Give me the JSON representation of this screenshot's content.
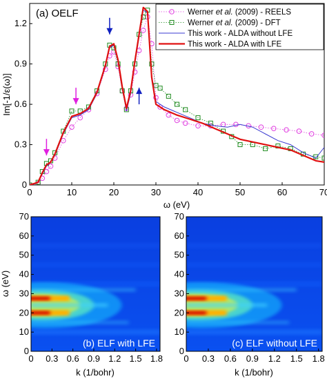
{
  "chart_data": [
    {
      "type": "line",
      "title": "(a) OELF",
      "xlabel": "ω (eV)",
      "ylabel": "Im[-1/ε(ω)]",
      "xlim": [
        0,
        70
      ],
      "ylim": [
        0,
        1.35
      ],
      "xticks": [
        "0",
        "10",
        "20",
        "30",
        "40",
        "50",
        "60",
        "70"
      ],
      "yticks": [
        "0",
        "0.3",
        "0.6",
        "0.9",
        "1.2"
      ],
      "legend_position": "top-right",
      "series": [
        {
          "name_parts": [
            "Werner ",
            "et al.",
            " (2009) - REELS"
          ],
          "color": "#e040e0",
          "style": "circle-markers",
          "points": [
            [
              0,
              0
            ],
            [
              2,
              0.01
            ],
            [
              3,
              0.05
            ],
            [
              4,
              0.1
            ],
            [
              5,
              0.14
            ],
            [
              6,
              0.2
            ],
            [
              8,
              0.33
            ],
            [
              10,
              0.43
            ],
            [
              12,
              0.5
            ],
            [
              14,
              0.56
            ],
            [
              16,
              0.68
            ],
            [
              18,
              0.86
            ],
            [
              19,
              0.96
            ],
            [
              20,
              0.99
            ],
            [
              21,
              0.88
            ],
            [
              22,
              0.7
            ],
            [
              23,
              0.57
            ],
            [
              24,
              0.67
            ],
            [
              25,
              0.84
            ],
            [
              26,
              1.0
            ],
            [
              27,
              1.15
            ],
            [
              28,
              1.25
            ],
            [
              29,
              1.05
            ],
            [
              30,
              0.65
            ],
            [
              31,
              0.58
            ],
            [
              33,
              0.52
            ],
            [
              35,
              0.48
            ],
            [
              37,
              0.46
            ],
            [
              40,
              0.44
            ],
            [
              43,
              0.44
            ],
            [
              46,
              0.45
            ],
            [
              49,
              0.45
            ],
            [
              52,
              0.44
            ],
            [
              55,
              0.43
            ],
            [
              58,
              0.42
            ],
            [
              61,
              0.41
            ],
            [
              64,
              0.4
            ],
            [
              67,
              0.38
            ],
            [
              70,
              0.37
            ]
          ]
        },
        {
          "name_parts": [
            "Werner ",
            "et al.",
            " (2009) - DFT"
          ],
          "color": "#1e8a1e",
          "style": "square-markers",
          "points": [
            [
              0,
              0
            ],
            [
              2,
              0.02
            ],
            [
              3,
              0.1
            ],
            [
              4,
              0.16
            ],
            [
              5,
              0.18
            ],
            [
              6,
              0.24
            ],
            [
              8,
              0.4
            ],
            [
              10,
              0.55
            ],
            [
              12,
              0.55
            ],
            [
              14,
              0.58
            ],
            [
              16,
              0.7
            ],
            [
              18,
              0.9
            ],
            [
              19,
              1.04
            ],
            [
              20,
              1.02
            ],
            [
              21,
              0.9
            ],
            [
              22,
              0.7
            ],
            [
              23,
              0.56
            ],
            [
              24,
              0.7
            ],
            [
              25,
              0.9
            ],
            [
              26,
              1.12
            ],
            [
              27,
              1.25
            ],
            [
              28,
              1.3
            ],
            [
              29,
              0.9
            ],
            [
              30,
              0.74
            ],
            [
              31,
              0.72
            ],
            [
              33,
              0.66
            ],
            [
              35,
              0.6
            ],
            [
              37,
              0.56
            ],
            [
              40,
              0.5
            ],
            [
              43,
              0.46
            ],
            [
              46,
              0.4
            ],
            [
              48,
              0.36
            ],
            [
              50,
              0.3
            ],
            [
              53,
              0.3
            ],
            [
              56,
              0.27
            ],
            [
              59,
              0.29
            ],
            [
              62,
              0.27
            ],
            [
              65,
              0.23
            ],
            [
              68,
              0.21
            ],
            [
              70,
              0.2
            ]
          ]
        },
        {
          "name": "This work - ALDA without LFE",
          "color": "#3a3ad0",
          "style": "thin-line",
          "points": [
            [
              0,
              0
            ],
            [
              2,
              0.02
            ],
            [
              3,
              0.08
            ],
            [
              4,
              0.14
            ],
            [
              5,
              0.17
            ],
            [
              6,
              0.22
            ],
            [
              8,
              0.38
            ],
            [
              10,
              0.5
            ],
            [
              12,
              0.52
            ],
            [
              14,
              0.56
            ],
            [
              16,
              0.68
            ],
            [
              18,
              0.88
            ],
            [
              19,
              1.02
            ],
            [
              20,
              1.04
            ],
            [
              21,
              0.92
            ],
            [
              22,
              0.72
            ],
            [
              23,
              0.55
            ],
            [
              24,
              0.68
            ],
            [
              25,
              0.9
            ],
            [
              26,
              1.1
            ],
            [
              27,
              1.3
            ],
            [
              28,
              1.28
            ],
            [
              29,
              0.82
            ],
            [
              30,
              0.62
            ],
            [
              32,
              0.58
            ],
            [
              35,
              0.54
            ],
            [
              38,
              0.5
            ],
            [
              41,
              0.46
            ],
            [
              44,
              0.44
            ],
            [
              47,
              0.43
            ],
            [
              50,
              0.45
            ],
            [
              53,
              0.43
            ],
            [
              56,
              0.38
            ],
            [
              59,
              0.33
            ],
            [
              62,
              0.3
            ],
            [
              65,
              0.24
            ],
            [
              68,
              0.2
            ],
            [
              70,
              0.28
            ]
          ]
        },
        {
          "name": "This work - ALDA with LFE",
          "color": "#e01010",
          "style": "thick-line",
          "points": [
            [
              0,
              0
            ],
            [
              2,
              0.02
            ],
            [
              3,
              0.09
            ],
            [
              4,
              0.15
            ],
            [
              5,
              0.17
            ],
            [
              6,
              0.23
            ],
            [
              8,
              0.39
            ],
            [
              10,
              0.51
            ],
            [
              12,
              0.53
            ],
            [
              14,
              0.57
            ],
            [
              16,
              0.69
            ],
            [
              18,
              0.89
            ],
            [
              19,
              1.03
            ],
            [
              20,
              1.05
            ],
            [
              21,
              0.93
            ],
            [
              22,
              0.73
            ],
            [
              23,
              0.57
            ],
            [
              24,
              0.7
            ],
            [
              25,
              0.92
            ],
            [
              26,
              1.12
            ],
            [
              27,
              1.32
            ],
            [
              28,
              1.29
            ],
            [
              29,
              0.8
            ],
            [
              30,
              0.6
            ],
            [
              32,
              0.56
            ],
            [
              35,
              0.52
            ],
            [
              38,
              0.49
            ],
            [
              41,
              0.46
            ],
            [
              44,
              0.42
            ],
            [
              47,
              0.38
            ],
            [
              50,
              0.34
            ],
            [
              53,
              0.32
            ],
            [
              56,
              0.3
            ],
            [
              59,
              0.28
            ],
            [
              62,
              0.26
            ],
            [
              65,
              0.22
            ],
            [
              68,
              0.18
            ],
            [
              70,
              0.17
            ]
          ]
        }
      ],
      "annotations": [
        {
          "kind": "arrow-down",
          "color": "#e020e0",
          "x": 4,
          "y": 0.22
        },
        {
          "kind": "arrow-down",
          "color": "#e020e0",
          "x": 11,
          "y": 0.6
        },
        {
          "kind": "arrow-down",
          "color": "#1020c0",
          "x": 19,
          "y": 1.12
        },
        {
          "kind": "arrow-up",
          "color": "#1020c0",
          "x": 26,
          "y": 0.6
        }
      ]
    },
    {
      "type": "heatmap",
      "label": "(b) ELF with LFE",
      "xlabel": "k (1/bohr)",
      "ylabel": "ω (eV)",
      "xlim": [
        0,
        1.85
      ],
      "ylim": [
        0,
        70
      ],
      "xticks": [
        "0",
        "0.3",
        "0.6",
        "0.9",
        "1.2",
        "1.5",
        "1.8"
      ],
      "yticks": [
        "0",
        "10",
        "20",
        "30",
        "40",
        "50",
        "60",
        "70"
      ],
      "ridges": [
        {
          "omega": 27.5,
          "intensity": 1.0,
          "k_extent": 0.55
        },
        {
          "omega": 20,
          "intensity": 1.0,
          "k_extent": 0.55
        },
        {
          "omega": 24,
          "intensity": 0.55,
          "k_extent": 1.1
        },
        {
          "omega": 32,
          "intensity": 0.35,
          "k_extent": 1.5
        },
        {
          "omega": 15,
          "intensity": 0.3,
          "k_extent": 1.4
        }
      ]
    },
    {
      "type": "heatmap",
      "label": "(c) ELF without LFE",
      "xlabel": "k (1/bohr)",
      "ylabel": "",
      "xlim": [
        0,
        1.85
      ],
      "ylim": [
        0,
        70
      ],
      "xticks": [
        "0",
        "0.3",
        "0.6",
        "0.9",
        "1.2",
        "1.5",
        "1.8"
      ],
      "yticks": [
        "0",
        "10",
        "20",
        "30",
        "40",
        "50",
        "60",
        "70"
      ],
      "ridges": [
        {
          "omega": 27.5,
          "intensity": 1.0,
          "k_extent": 0.55
        },
        {
          "omega": 20,
          "intensity": 1.0,
          "k_extent": 0.55
        },
        {
          "omega": 24,
          "intensity": 0.55,
          "k_extent": 1.1
        },
        {
          "omega": 32,
          "intensity": 0.35,
          "k_extent": 1.5
        },
        {
          "omega": 15,
          "intensity": 0.3,
          "k_extent": 1.4
        }
      ]
    }
  ]
}
